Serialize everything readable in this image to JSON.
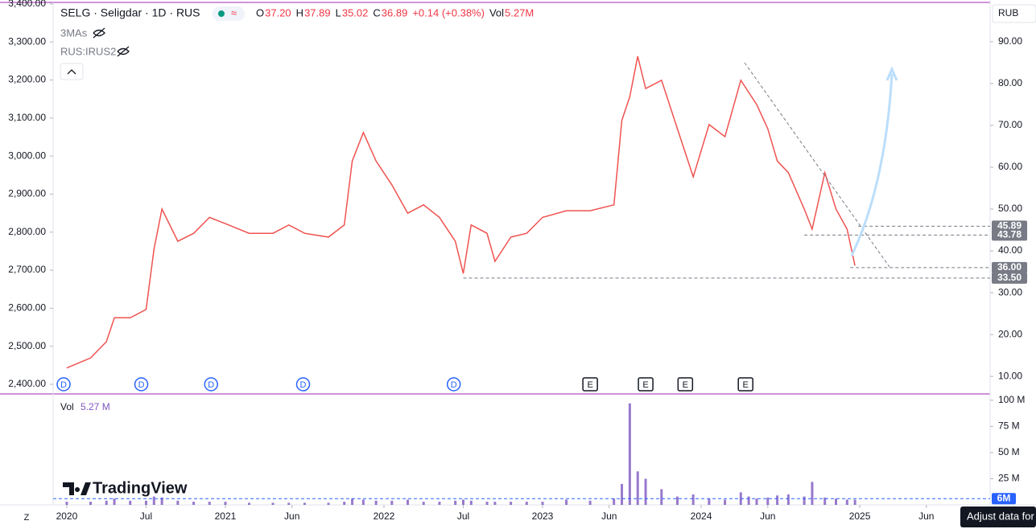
{
  "header": {
    "symbol": "SELG · Seligdar · 1D · RUS",
    "ohlc": [
      {
        "key": "O",
        "value": "37.20"
      },
      {
        "key": "H",
        "value": "37.89"
      },
      {
        "key": "L",
        "value": "35.02"
      },
      {
        "key": "C",
        "value": "36.89"
      }
    ],
    "change": "+0.14 (+0.38%)",
    "vol_key": "Vol",
    "vol": "5.27M"
  },
  "indicators": [
    "3MAs",
    "RUS:IRUS2"
  ],
  "currency": "RUB",
  "watermark": "TradingView",
  "tooltip": "Adjust data for",
  "zoom_button": "Z",
  "chart_data": [
    {
      "type": "line",
      "color": "#ef5350",
      "x": [
        2020.0,
        2020.15,
        2020.25,
        2020.3,
        2020.4,
        2020.5,
        2020.55,
        2020.6,
        2020.7,
        2020.8,
        2020.9,
        2021.0,
        2021.15,
        2021.3,
        2021.4,
        2021.5,
        2021.65,
        2021.75,
        2021.8,
        2021.87,
        2021.95,
        2022.05,
        2022.15,
        2022.25,
        2022.35,
        2022.45,
        2022.5,
        2022.55,
        2022.65,
        2022.7,
        2022.8,
        2022.9,
        2023.0,
        2023.15,
        2023.3,
        2023.45,
        2023.5,
        2023.55,
        2023.6,
        2023.65,
        2023.75,
        2023.85,
        2023.95,
        2024.05,
        2024.15,
        2024.25,
        2024.3,
        2024.35,
        2024.42,
        2024.48,
        2024.55,
        2024.65,
        2024.7,
        2024.78,
        2024.85,
        2024.92,
        2024.97
      ],
      "values": [
        12.0,
        14.4,
        18.3,
        24.0,
        24.0,
        26.0,
        40.4,
        50.0,
        42.3,
        44.2,
        48.0,
        46.5,
        44.2,
        44.2,
        46.2,
        44.2,
        43.3,
        46.2,
        61.5,
        68.3,
        61.5,
        55.8,
        49.0,
        51.0,
        48.0,
        42.3,
        34.6,
        46.2,
        44.2,
        37.5,
        43.3,
        44.2,
        48.0,
        49.6,
        49.6,
        51.0,
        71.2,
        76.9,
        86.5,
        78.8,
        80.8,
        69.2,
        57.7,
        70.2,
        67.3,
        80.8,
        77.9,
        75.0,
        69.2,
        61.5,
        58.7,
        50.0,
        45.2,
        58.7,
        50.0,
        45.2,
        36.5
      ],
      "xlim": [
        2019.914,
        2025.822
      ],
      "xticks": [
        {
          "value": 2020,
          "label": "2020"
        },
        {
          "value": 2020.5,
          "label": "Jul"
        },
        {
          "value": 2021,
          "label": "2021"
        },
        {
          "value": 2021.42,
          "label": "Jun"
        },
        {
          "value": 2022,
          "label": "2022"
        },
        {
          "value": 2022.5,
          "label": "Jul"
        },
        {
          "value": 2023,
          "label": "2023"
        },
        {
          "value": 2023.42,
          "label": "Jun"
        },
        {
          "value": 2024,
          "label": "2024"
        },
        {
          "value": 2024.42,
          "label": "Jun"
        },
        {
          "value": 2025,
          "label": "2025"
        },
        {
          "value": 2025.42,
          "label": "Jun"
        }
      ],
      "ylim": [
        5.8,
        99.4
      ],
      "yticks": [
        {
          "value": 10,
          "label": "10.00"
        },
        {
          "value": 20,
          "label": "20.00"
        },
        {
          "value": 30,
          "label": "30.00"
        },
        {
          "value": 40,
          "label": "40.00"
        },
        {
          "value": 50,
          "label": "50.00"
        },
        {
          "value": 60,
          "label": "60.00"
        },
        {
          "value": 70,
          "label": "70.00"
        },
        {
          "value": 80,
          "label": "80.00"
        },
        {
          "value": 90,
          "label": "90.00"
        }
      ],
      "y2lim": [
        2374.6,
        3404
      ],
      "y2ticks": [
        {
          "value": 2400,
          "label": "2,400.00"
        },
        {
          "value": 2500,
          "label": "2,500.00"
        },
        {
          "value": 2600,
          "label": "2,600.00"
        },
        {
          "value": 2700,
          "label": "2,700.00"
        },
        {
          "value": 2800,
          "label": "2,800.00"
        },
        {
          "value": 2900,
          "label": "2,900.00"
        },
        {
          "value": 3000,
          "label": "3,000.00"
        },
        {
          "value": 3100,
          "label": "3,100.00"
        },
        {
          "value": 3200,
          "label": "3,200.00"
        },
        {
          "value": 3300,
          "label": "3,300.00"
        },
        {
          "value": 3400,
          "label": "3,400.00"
        }
      ],
      "levels": [
        {
          "value": 45.89,
          "x_start": 2024.99
        },
        {
          "value": 43.78,
          "x_start": 2024.65
        },
        {
          "value": 36,
          "label": "36.00",
          "x_start": 2024.94
        },
        {
          "value": 33.5,
          "label": "33.50",
          "x_start": 2022.5
        }
      ],
      "events": [
        {
          "x": 2019.98,
          "label": "D"
        },
        {
          "x": 2020.47,
          "label": "D"
        },
        {
          "x": 2020.91,
          "label": "D"
        },
        {
          "x": 2021.49,
          "label": "D"
        },
        {
          "x": 2022.44,
          "label": "D"
        },
        {
          "x": 2023.3,
          "label": "E"
        },
        {
          "x": 2023.65,
          "label": "E"
        },
        {
          "x": 2023.9,
          "label": "E"
        },
        {
          "x": 2024.28,
          "label": "E"
        }
      ],
      "grid": false
    },
    {
      "type": "bar",
      "title": "Vol",
      "value_text": "5.27 M",
      "color": "#7e57c2",
      "x": [
        2020.0,
        2020.15,
        2020.25,
        2020.3,
        2020.4,
        2020.5,
        2020.55,
        2020.6,
        2020.7,
        2020.8,
        2020.9,
        2021.0,
        2021.15,
        2021.3,
        2021.4,
        2021.5,
        2021.65,
        2021.75,
        2021.8,
        2021.87,
        2021.95,
        2022.05,
        2022.15,
        2022.25,
        2022.35,
        2022.45,
        2022.5,
        2022.55,
        2022.65,
        2022.7,
        2022.8,
        2022.9,
        2023.0,
        2023.15,
        2023.3,
        2023.45,
        2023.5,
        2023.55,
        2023.6,
        2023.65,
        2023.75,
        2023.85,
        2023.95,
        2024.05,
        2024.15,
        2024.25,
        2024.3,
        2024.35,
        2024.42,
        2024.48,
        2024.55,
        2024.65,
        2024.7,
        2024.78,
        2024.85,
        2024.92,
        2024.97
      ],
      "values": [
        3000000,
        3000000,
        4000000,
        6000000,
        4000000,
        4000000,
        8000000,
        7000000,
        4000000,
        3000000,
        3000000,
        3000000,
        2000000,
        2000000,
        2000000,
        2000000,
        2000000,
        3000000,
        6000000,
        5000000,
        4000000,
        4000000,
        5000000,
        3000000,
        3000000,
        4000000,
        5000000,
        4000000,
        3000000,
        3000000,
        3000000,
        3000000,
        3000000,
        5000000,
        4000000,
        6000000,
        20000000,
        97000000,
        32000000,
        25000000,
        15000000,
        8000000,
        10000000,
        6000000,
        5000000,
        12000000,
        8000000,
        6000000,
        7000000,
        9000000,
        10000000,
        8000000,
        22000000,
        7000000,
        6000000,
        5000000,
        5000000
      ],
      "ylim": [
        0,
        106000000
      ],
      "yticks": [
        {
          "value": 25000000,
          "label": "25 M"
        },
        {
          "value": 50000000,
          "label": "50 M"
        },
        {
          "value": 75000000,
          "label": "75 M"
        },
        {
          "value": 100000000,
          "label": "100 M"
        }
      ],
      "levels": [
        {
          "value": 6000000,
          "label": "6M"
        }
      ]
    }
  ]
}
